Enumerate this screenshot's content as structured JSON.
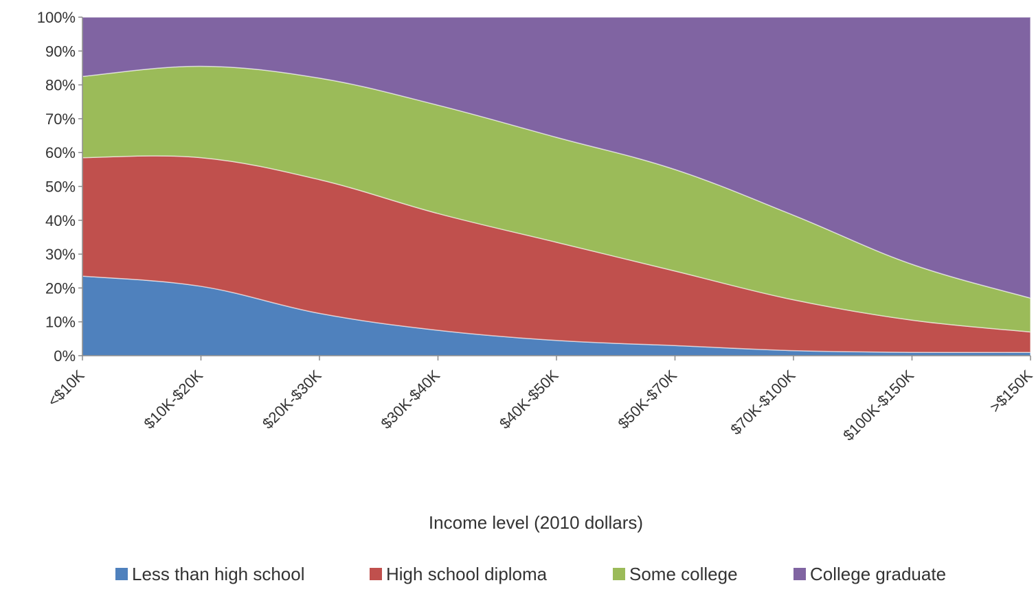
{
  "chart_data": {
    "type": "area",
    "stacked": true,
    "normalized": true,
    "categories": [
      "<$10K",
      "$10K-$20K",
      "$20K-$30K",
      "$30K-$40K",
      "$40K-$50K",
      "$50K-$70K",
      "$70K-$100K",
      "$100K-$150K",
      ">$150K"
    ],
    "series": [
      {
        "name": "Less than high school",
        "color": "#4F81BD",
        "values": [
          23.5,
          20.5,
          12.5,
          7.5,
          4.5,
          3,
          1.5,
          1,
          1
        ]
      },
      {
        "name": "High school diploma",
        "color": "#C0504D",
        "values": [
          35,
          38,
          39.5,
          34.5,
          29,
          22,
          15,
          9.5,
          6
        ]
      },
      {
        "name": "Some college",
        "color": "#9BBB59",
        "values": [
          24,
          27,
          30,
          32,
          31,
          30,
          25,
          16.5,
          10
        ]
      },
      {
        "name": "College graduate",
        "color": "#8064A2",
        "values": [
          17.5,
          14.5,
          18,
          26,
          35.5,
          45,
          58.5,
          73,
          83
        ]
      }
    ],
    "y_ticks": [
      "0%",
      "10%",
      "20%",
      "30%",
      "40%",
      "50%",
      "60%",
      "70%",
      "80%",
      "90%",
      "100%"
    ],
    "ylim": [
      0,
      100
    ],
    "xlabel": "Income level (2010 dollars)",
    "ylabel": "",
    "title": "",
    "legend_position": "bottom",
    "grid": false
  }
}
